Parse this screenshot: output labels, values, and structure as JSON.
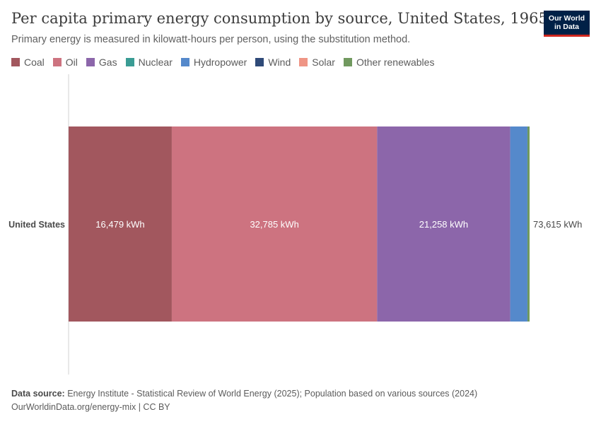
{
  "header": {
    "title": "Per capita primary energy consumption by source, United States, 1965",
    "subtitle": "Primary energy is measured in kilowatt-hours per person, using the substitution method.",
    "logo_line1": "Our World",
    "logo_line2": "in Data"
  },
  "legend": [
    {
      "label": "Coal",
      "color": "#a2575e"
    },
    {
      "label": "Oil",
      "color": "#cd7380"
    },
    {
      "label": "Gas",
      "color": "#8c66aa"
    },
    {
      "label": "Nuclear",
      "color": "#3a9c94"
    },
    {
      "label": "Hydropower",
      "color": "#5589cb"
    },
    {
      "label": "Wind",
      "color": "#2f4a78"
    },
    {
      "label": "Solar",
      "color": "#ef9585"
    },
    {
      "label": "Other renewables",
      "color": "#71995f"
    }
  ],
  "chart_data": {
    "type": "bar",
    "orientation": "horizontal",
    "stacked": true,
    "categories": [
      "United States"
    ],
    "unit": "kWh",
    "series": [
      {
        "name": "Coal",
        "values": [
          16479
        ],
        "color": "#a2575e",
        "label": "16,479 kWh"
      },
      {
        "name": "Oil",
        "values": [
          32785
        ],
        "color": "#cd7380",
        "label": "32,785 kWh"
      },
      {
        "name": "Gas",
        "values": [
          21258
        ],
        "color": "#8c66aa",
        "label": "21,258 kWh"
      },
      {
        "name": "Nuclear",
        "values": [
          0
        ],
        "color": "#3a9c94",
        "label": ""
      },
      {
        "name": "Hydropower",
        "values": [
          2750
        ],
        "color": "#5589cb",
        "label": ""
      },
      {
        "name": "Wind",
        "values": [
          0
        ],
        "color": "#2f4a78",
        "label": ""
      },
      {
        "name": "Solar",
        "values": [
          0
        ],
        "color": "#ef9585",
        "label": ""
      },
      {
        "name": "Other renewables",
        "values": [
          343
        ],
        "color": "#71995f",
        "label": ""
      }
    ],
    "total_label": "73,615 kWh",
    "xlim": [
      0,
      73615
    ],
    "grid": false,
    "legend_position": "top-left"
  },
  "footer": {
    "source_label": "Data source:",
    "source_text": "Energy Institute - Statistical Review of World Energy (2025); Population based on various sources (2024)",
    "url_line": "OurWorldinData.org/energy-mix | CC BY"
  }
}
